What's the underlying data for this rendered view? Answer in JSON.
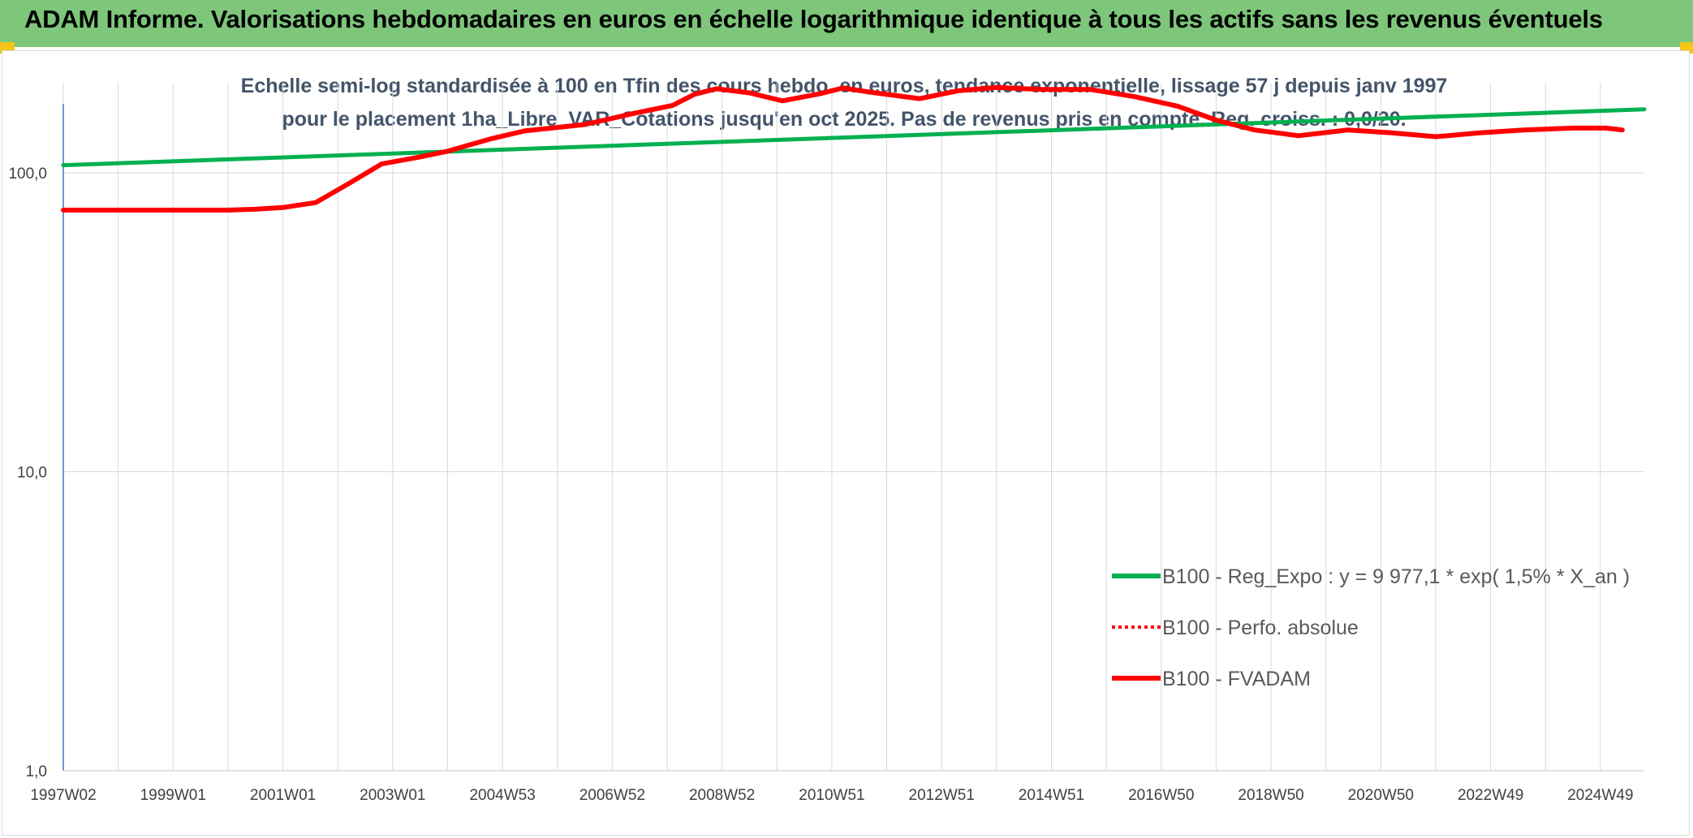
{
  "header": {
    "title": "ADAM Informe. Valorisations hebdomadaires en euros en échelle logarithmique identique à tous les actifs sans les revenus éventuels"
  },
  "colors": {
    "header_bg": "#7dc67a",
    "accent_corner": "#f5c518",
    "series_trend": "#00b050",
    "series_fvadam": "#ff0000",
    "axis_line": "#4472c4",
    "grid": "#d9d9d9"
  },
  "chart_data": {
    "type": "line",
    "title": "Echelle semi-log standardisée à 100 en Tfin des cours hebdo. en euros, tendance exponentielle, lissage 57 j depuis janv 1997 pour le placement 1ha_Libre_VAR_Cotations jusqu'en oct 2025. Pas de revenus pris en compte. Reg. croiss. : 0,0/20.",
    "y_scale": "log",
    "ylim": [
      1,
      200
    ],
    "y_ticks": [
      "1,0",
      "10,0",
      "100,0"
    ],
    "y_tick_values": [
      1,
      10,
      100
    ],
    "x_range": [
      1997.0,
      2025.8
    ],
    "x_tick_labels": [
      "1997W02",
      "1999W01",
      "2001W01",
      "2003W01",
      "2004W53",
      "2006W52",
      "2008W52",
      "2010W51",
      "2012W51",
      "2014W51",
      "2016W50",
      "2018W50",
      "2020W50",
      "2022W49",
      "2024W49"
    ],
    "x_tick_years": [
      1997,
      1999,
      2001,
      2003,
      2005,
      2007,
      2009,
      2011,
      2013,
      2015,
      2017,
      2019,
      2021,
      2023,
      2025
    ],
    "grid": "vertical and horizontal",
    "legend_position": "bottom-right",
    "series": [
      {
        "name": "B100 - Reg_Expo : y = 9 977,1 * exp( 1,5% *  X_an )",
        "style": "solid",
        "points": [
          [
            1997.0,
            106
          ],
          [
            2025.8,
            163
          ]
        ]
      },
      {
        "name": "B100 - Perfo. absolue",
        "style": "dotted",
        "points": []
      },
      {
        "name": "B100 - FVADAM",
        "style": "solid",
        "points": [
          [
            1997.0,
            75
          ],
          [
            1998.0,
            75
          ],
          [
            1999.0,
            75
          ],
          [
            2000.0,
            75
          ],
          [
            2000.5,
            75.5
          ],
          [
            2001.0,
            76.5
          ],
          [
            2001.6,
            79.5
          ],
          [
            2002.2,
            92
          ],
          [
            2002.8,
            107
          ],
          [
            2003.5,
            113
          ],
          [
            2004.0,
            118
          ],
          [
            2004.8,
            130
          ],
          [
            2005.4,
            138
          ],
          [
            2006.5,
            145
          ],
          [
            2007.4,
            158
          ],
          [
            2008.1,
            168
          ],
          [
            2008.5,
            183
          ],
          [
            2008.9,
            191
          ],
          [
            2009.5,
            185
          ],
          [
            2010.1,
            174
          ],
          [
            2010.8,
            184
          ],
          [
            2011.2,
            192
          ],
          [
            2011.7,
            186
          ],
          [
            2012.6,
            177
          ],
          [
            2013.3,
            188
          ],
          [
            2014.0,
            193
          ],
          [
            2014.8,
            190
          ],
          [
            2015.7,
            190
          ],
          [
            2016.5,
            180
          ],
          [
            2017.3,
            167
          ],
          [
            2018.0,
            150
          ],
          [
            2018.7,
            139
          ],
          [
            2019.5,
            133
          ],
          [
            2020.4,
            139
          ],
          [
            2021.2,
            136
          ],
          [
            2022.0,
            132
          ],
          [
            2022.8,
            136
          ],
          [
            2023.6,
            139
          ],
          [
            2024.5,
            141
          ],
          [
            2025.1,
            141
          ],
          [
            2025.4,
            139
          ]
        ]
      }
    ]
  }
}
